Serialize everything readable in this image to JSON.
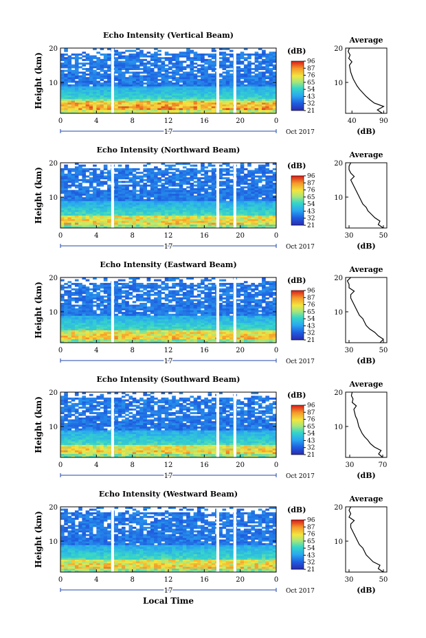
{
  "figure": {
    "xlabel": "Local Time",
    "x_ticks": [
      "0",
      "4",
      "8",
      "12",
      "16",
      "20",
      "0"
    ],
    "date_mark": "17",
    "date_label": "Oct 2017",
    "ylabel": "Height (km)",
    "y_ticks": [
      "20",
      "10"
    ],
    "colorbar_unit": "(dB)",
    "avg_title": "Average",
    "avg_xlabel": "(dB)"
  },
  "chart_data": [
    {
      "type": "heatmap",
      "title": "Echo Intensity (Vertical Beam)",
      "xlim": [
        0,
        24
      ],
      "ylim": [
        1,
        20
      ],
      "gaps_hours": [
        5.8,
        17.5,
        19.4
      ],
      "cloud_top_km": 17.5,
      "colorbar_ticks": [
        "96",
        "87",
        "76",
        "65",
        "54",
        "43",
        "32",
        "21"
      ],
      "average": {
        "xticks": [
          "40",
          "90"
        ],
        "xlim": [
          30,
          95
        ],
        "profile": [
          [
            1,
            88
          ],
          [
            2,
            80
          ],
          [
            3,
            90
          ],
          [
            4,
            75
          ],
          [
            5,
            68
          ],
          [
            6,
            62
          ],
          [
            7,
            57
          ],
          [
            8,
            52
          ],
          [
            9,
            48
          ],
          [
            10,
            45
          ],
          [
            11,
            42
          ],
          [
            12,
            40
          ],
          [
            13,
            38
          ],
          [
            14,
            37
          ],
          [
            15,
            36
          ],
          [
            16,
            40
          ],
          [
            17,
            35
          ],
          [
            18,
            37
          ],
          [
            19,
            34
          ],
          [
            20,
            36
          ]
        ]
      }
    },
    {
      "type": "heatmap",
      "title": "Echo Intensity (Northward Beam)",
      "xlim": [
        0,
        24
      ],
      "ylim": [
        1,
        20
      ],
      "gaps_hours": [
        5.8,
        17.5,
        19.4
      ],
      "cloud_top_km": 17.5,
      "colorbar_ticks": [
        "96",
        "87",
        "76",
        "65",
        "54",
        "43",
        "32",
        "21"
      ],
      "average": {
        "xticks": [
          "30",
          "50"
        ],
        "xlim": [
          28,
          52
        ],
        "profile": [
          [
            1,
            50
          ],
          [
            2,
            47
          ],
          [
            3,
            48
          ],
          [
            4,
            45
          ],
          [
            5,
            43
          ],
          [
            6,
            41
          ],
          [
            7,
            40
          ],
          [
            8,
            38
          ],
          [
            9,
            37
          ],
          [
            10,
            36
          ],
          [
            11,
            35
          ],
          [
            12,
            34
          ],
          [
            13,
            33
          ],
          [
            14,
            32
          ],
          [
            15,
            31
          ],
          [
            16,
            33
          ],
          [
            17,
            31
          ],
          [
            18,
            30
          ],
          [
            19,
            30
          ],
          [
            20,
            31
          ]
        ]
      }
    },
    {
      "type": "heatmap",
      "title": "Echo Intensity (Eastward Beam)",
      "xlim": [
        0,
        24
      ],
      "ylim": [
        1,
        20
      ],
      "gaps_hours": [
        5.8,
        17.5,
        19.4
      ],
      "cloud_top_km": 17.5,
      "colorbar_ticks": [
        "96",
        "87",
        "76",
        "65",
        "54",
        "43",
        "32",
        "21"
      ],
      "average": {
        "xticks": [
          "30",
          "50"
        ],
        "xlim": [
          28,
          52
        ],
        "profile": [
          [
            1,
            48
          ],
          [
            2,
            50
          ],
          [
            3,
            47
          ],
          [
            4,
            45
          ],
          [
            5,
            42
          ],
          [
            6,
            40
          ],
          [
            7,
            39
          ],
          [
            8,
            38
          ],
          [
            9,
            36
          ],
          [
            10,
            35
          ],
          [
            11,
            34
          ],
          [
            12,
            33
          ],
          [
            13,
            32
          ],
          [
            14,
            31
          ],
          [
            15,
            31
          ],
          [
            16,
            33
          ],
          [
            17,
            30
          ],
          [
            18,
            30
          ],
          [
            19,
            29
          ],
          [
            20,
            31
          ]
        ]
      }
    },
    {
      "type": "heatmap",
      "title": "Echo Intensity (Southward Beam)",
      "xlim": [
        0,
        24
      ],
      "ylim": [
        1,
        20
      ],
      "gaps_hours": [
        5.8,
        17.5,
        19.4
      ],
      "cloud_top_km": 17.5,
      "colorbar_ticks": [
        "96",
        "87",
        "76",
        "65",
        "54",
        "43",
        "32",
        "21"
      ],
      "average": {
        "xticks": [
          "30",
          "70"
        ],
        "xlim": [
          25,
          75
        ],
        "profile": [
          [
            1,
            70
          ],
          [
            2,
            65
          ],
          [
            3,
            68
          ],
          [
            4,
            60
          ],
          [
            5,
            55
          ],
          [
            6,
            52
          ],
          [
            7,
            48
          ],
          [
            8,
            45
          ],
          [
            9,
            43
          ],
          [
            10,
            41
          ],
          [
            11,
            40
          ],
          [
            12,
            39
          ],
          [
            13,
            37
          ],
          [
            14,
            36
          ],
          [
            15,
            35
          ],
          [
            16,
            38
          ],
          [
            17,
            33
          ],
          [
            18,
            34
          ],
          [
            19,
            32
          ],
          [
            20,
            33
          ]
        ]
      }
    },
    {
      "type": "heatmap",
      "title": "Echo Intensity (Westward Beam)",
      "xlim": [
        0,
        24
      ],
      "ylim": [
        1,
        20
      ],
      "gaps_hours": [
        5.8,
        17.5,
        19.4
      ],
      "cloud_top_km": 17.5,
      "colorbar_ticks": [
        "96",
        "87",
        "76",
        "65",
        "54",
        "43",
        "32",
        "21"
      ],
      "average": {
        "xticks": [
          "30",
          "50"
        ],
        "xlim": [
          28,
          52
        ],
        "profile": [
          [
            1,
            50
          ],
          [
            2,
            47
          ],
          [
            3,
            48
          ],
          [
            4,
            44
          ],
          [
            5,
            42
          ],
          [
            6,
            40
          ],
          [
            7,
            39
          ],
          [
            8,
            38
          ],
          [
            9,
            36
          ],
          [
            10,
            35
          ],
          [
            11,
            34
          ],
          [
            12,
            33
          ],
          [
            13,
            32
          ],
          [
            14,
            31
          ],
          [
            15,
            31
          ],
          [
            16,
            33
          ],
          [
            17,
            30
          ],
          [
            18,
            31
          ],
          [
            19,
            30
          ],
          [
            20,
            31
          ]
        ]
      }
    }
  ]
}
